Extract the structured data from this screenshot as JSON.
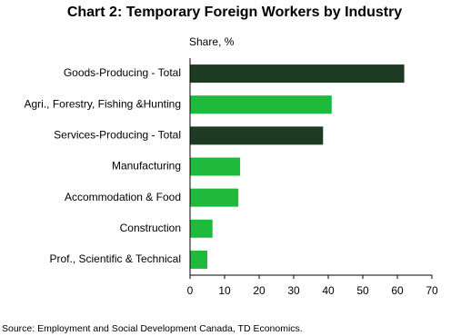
{
  "chart_data": {
    "type": "bar",
    "orientation": "horizontal",
    "title": "Chart 2: Temporary Foreign Workers by Industry",
    "axis_label": "Share, %",
    "categories": [
      "Goods-Producing - Total",
      "Agri., Forestry, Fishing &Hunting",
      "Services-Producing - Total",
      "Manufacturing",
      "Accommodation & Food",
      "Construction",
      "Prof., Scientific & Technical"
    ],
    "values": [
      62,
      41,
      38.5,
      14.5,
      14,
      6.5,
      5
    ],
    "colors": [
      "#1d3b22",
      "#1fba3b",
      "#1d3b22",
      "#1fba3b",
      "#1fba3b",
      "#1fba3b",
      "#1fba3b"
    ],
    "xlim": [
      0,
      70
    ],
    "xticks": [
      0,
      10,
      20,
      30,
      40,
      50,
      60,
      70
    ],
    "source": "Source: Employment  and Social Development  Canada, TD Economics."
  }
}
